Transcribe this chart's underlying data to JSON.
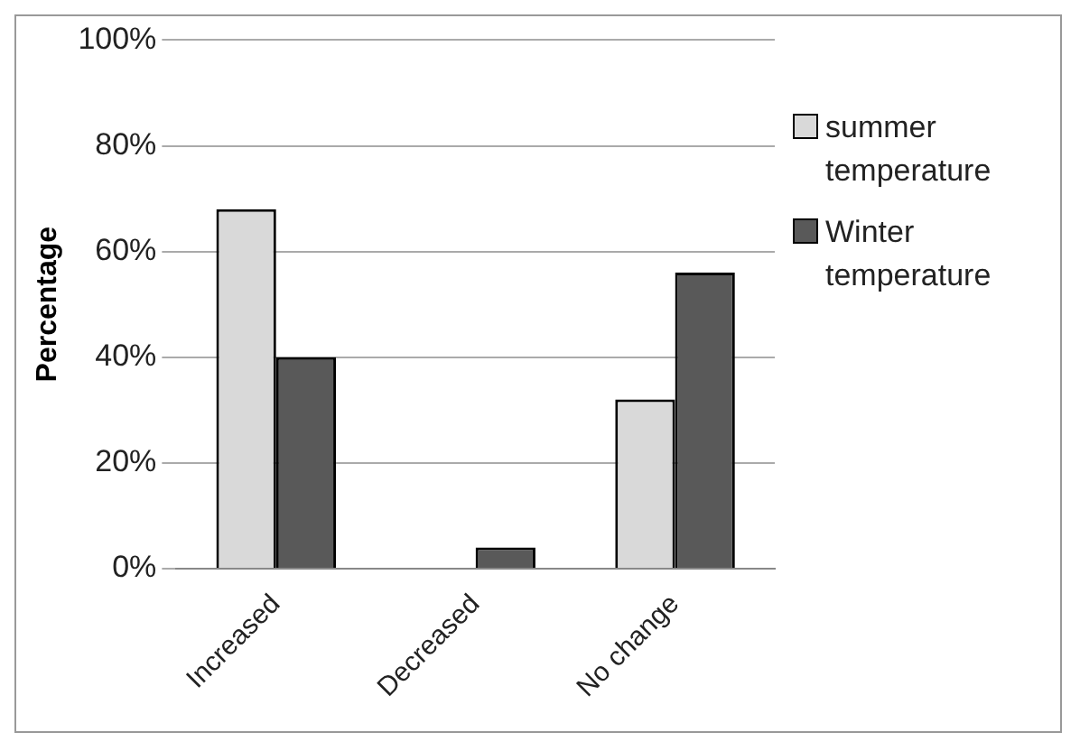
{
  "chart_data": {
    "type": "bar",
    "ylabel": "Percentage",
    "categories": [
      "Increased",
      "Decreased",
      "No change"
    ],
    "series": [
      {
        "name": "summer temperature",
        "color": "#d9d9d9",
        "values": [
          68,
          0,
          32
        ]
      },
      {
        "name": "Winter temperature",
        "color": "#595959",
        "values": [
          40,
          4,
          56
        ]
      }
    ],
    "ylim": [
      0,
      100
    ],
    "yticks": [
      {
        "value": 0,
        "label": "0%"
      },
      {
        "value": 20,
        "label": "20%"
      },
      {
        "value": 40,
        "label": "40%"
      },
      {
        "value": 60,
        "label": "60%"
      },
      {
        "value": 80,
        "label": "80%"
      },
      {
        "value": 100,
        "label": "100%"
      }
    ],
    "grid": "y",
    "legend": "right"
  }
}
